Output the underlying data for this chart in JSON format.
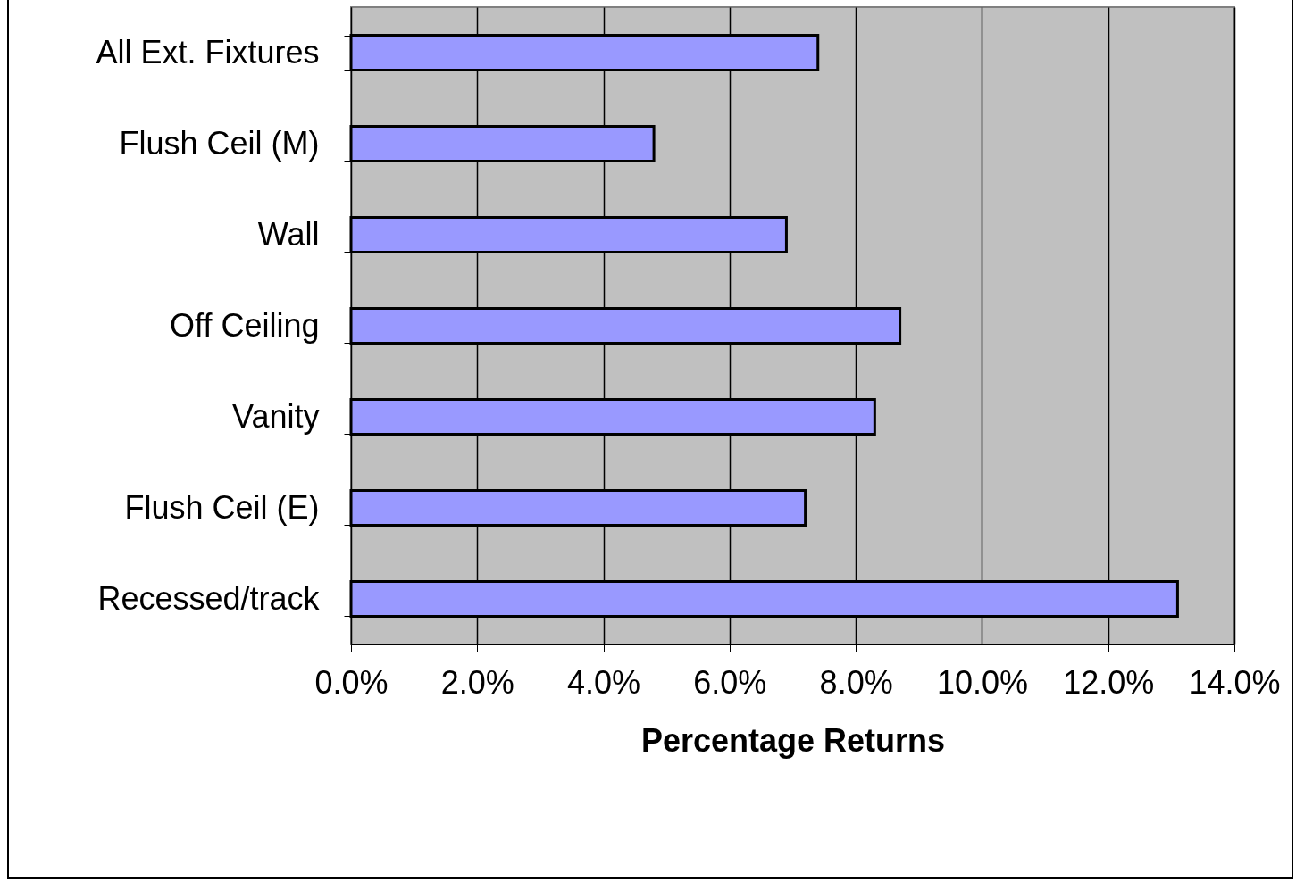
{
  "chart_data": {
    "type": "bar",
    "orientation": "horizontal",
    "xlabel": "Percentage Returns",
    "categories": [
      "All Ext. Fixtures",
      "Flush Ceil (M)",
      "Wall ",
      "Off Ceiling",
      "Vanity",
      "Flush Ceil (E)",
      "Recessed/track"
    ],
    "values": [
      7.4,
      4.8,
      6.9,
      8.7,
      8.3,
      7.2,
      13.1
    ],
    "color": "#9999ff",
    "xlim": [
      0,
      14
    ],
    "xticks": [
      {
        "value": 0,
        "label": "0.0%"
      },
      {
        "value": 2,
        "label": "2.0%"
      },
      {
        "value": 4,
        "label": "4.0%"
      },
      {
        "value": 6,
        "label": "6.0%"
      },
      {
        "value": 8,
        "label": "8.0%"
      },
      {
        "value": 10,
        "label": "10.0%"
      },
      {
        "value": 12,
        "label": "12.0%"
      },
      {
        "value": 14,
        "label": "14.0%"
      }
    ],
    "grid": "x"
  }
}
